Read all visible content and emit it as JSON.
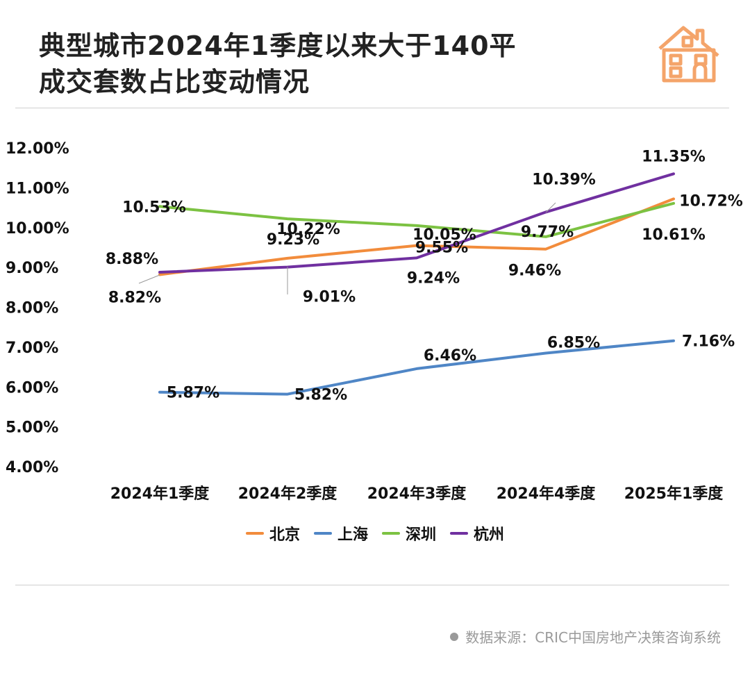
{
  "header": {
    "title_line1": "典型城市2024年1季度以来大于140平",
    "title_line2": "成交套数占比变动情况"
  },
  "icons": {
    "logo": "house-icon",
    "logo_color": "#F4A46A"
  },
  "source": {
    "text": "数据来源：CRIC中国房地产决策咨询系统"
  },
  "chart_data": {
    "type": "line",
    "title": "典型城市2024年1季度以来大于140平成交套数占比变动情况",
    "categories": [
      "2024年1季度",
      "2024年2季度",
      "2024年3季度",
      "2024年4季度",
      "2025年1季度"
    ],
    "y_ticks": [
      "12.00%",
      "11.00%",
      "10.00%",
      "9.00%",
      "8.00%",
      "7.00%",
      "6.00%",
      "5.00%",
      "4.00%"
    ],
    "ylim": [
      4,
      12
    ],
    "legend_position": "bottom",
    "grid": false,
    "series": [
      {
        "name": "北京",
        "color": "#F28C3C",
        "values": [
          8.82,
          9.23,
          9.55,
          9.46,
          10.72
        ],
        "labels": [
          "8.82%",
          "9.23%",
          "9.55%",
          "9.46%",
          "10.72%"
        ]
      },
      {
        "name": "上海",
        "color": "#4F86C6",
        "values": [
          5.87,
          5.82,
          6.46,
          6.85,
          7.16
        ],
        "labels": [
          "5.87%",
          "5.82%",
          "6.46%",
          "6.85%",
          "7.16%"
        ]
      },
      {
        "name": "深圳",
        "color": "#7CC242",
        "values": [
          10.53,
          10.22,
          10.05,
          9.77,
          10.61
        ],
        "labels": [
          "10.53%",
          "10.22%",
          "10.05%",
          "9.77%",
          "10.61%"
        ]
      },
      {
        "name": "杭州",
        "color": "#7030A0",
        "values": [
          8.88,
          9.01,
          9.24,
          10.39,
          11.35
        ],
        "labels": [
          "8.88%",
          "9.01%",
          "9.24%",
          "10.39%",
          "11.35%"
        ]
      }
    ]
  }
}
